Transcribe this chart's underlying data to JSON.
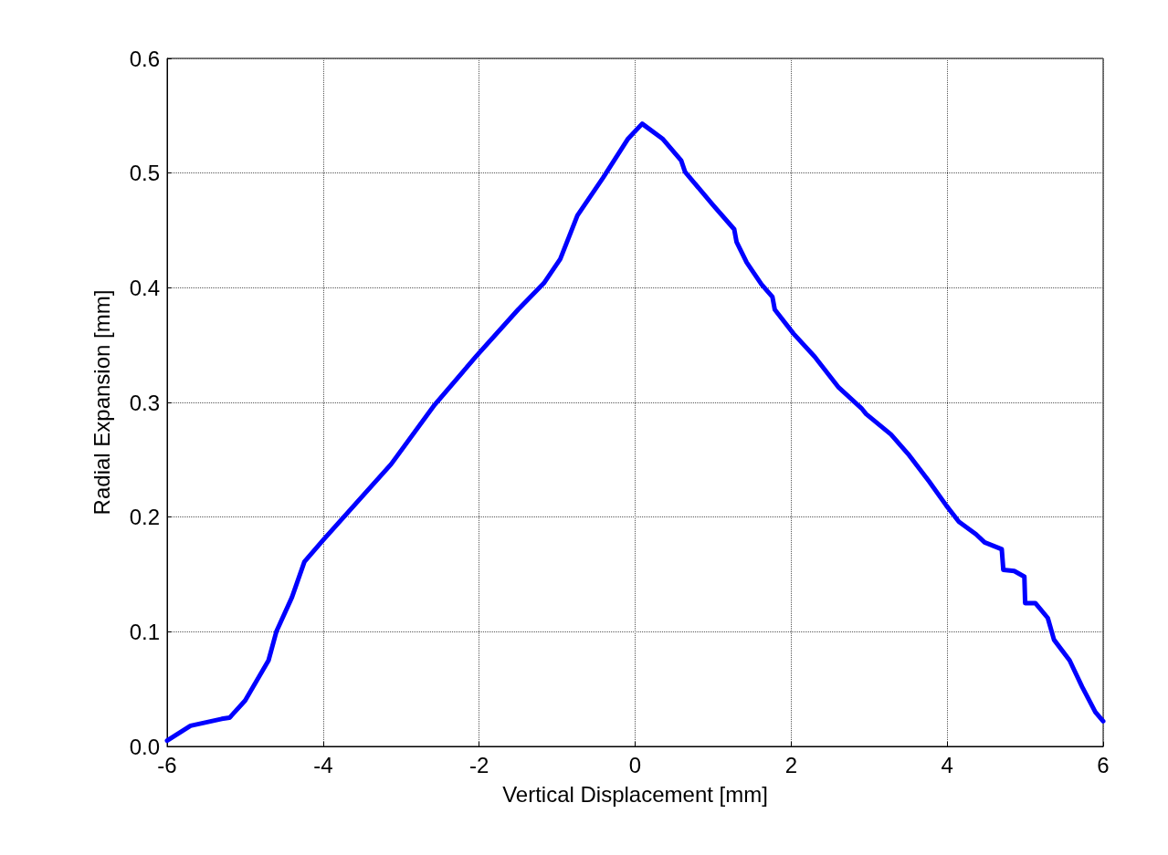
{
  "chart_data": {
    "type": "line",
    "xlabel": "Vertical Displacement [mm]",
    "ylabel": "Radial Expansion [mm]",
    "xlim": [
      -6,
      6
    ],
    "xticks": [
      -6,
      -4,
      -2,
      0,
      2,
      4,
      6
    ],
    "ylim": [
      0,
      0.6
    ],
    "yticks": [
      {
        "value": 0,
        "label": "0.0"
      },
      0.1,
      0.2,
      0.3,
      0.4,
      0.5,
      0.6
    ],
    "grid": true,
    "marker": "none",
    "line_style": "solid",
    "series": [
      {
        "color": "#0000ff",
        "x": [
          -6,
          -5.7,
          -5.5,
          -5.3,
          -5.2,
          -5.0,
          -4.7,
          -4.6,
          -4.4,
          -4.24,
          -4.0,
          -3.13,
          -2.57,
          -2.04,
          -1.5,
          -1.17,
          -0.96,
          -0.74,
          -0.41,
          -0.09,
          0.09,
          0.35,
          0.59,
          0.64,
          1.0,
          1.27,
          1.3,
          1.43,
          1.62,
          1.76,
          1.79,
          2.03,
          2.3,
          2.61,
          2.9,
          2.96,
          3.28,
          3.5,
          3.77,
          3.99,
          4.15,
          4.37,
          4.48,
          4.7,
          4.72,
          4.86,
          4.99,
          5.0,
          5.13,
          5.29,
          5.37,
          5.57,
          5.73,
          5.9,
          6
        ],
        "values": [
          0.005,
          0.018,
          0.021,
          0.024,
          0.025,
          0.04,
          0.075,
          0.1,
          0.13,
          0.161,
          0.18,
          0.246,
          0.298,
          0.34,
          0.381,
          0.404,
          0.425,
          0.463,
          0.496,
          0.53,
          0.543,
          0.53,
          0.511,
          0.501,
          0.472,
          0.451,
          0.44,
          0.422,
          0.403,
          0.392,
          0.381,
          0.36,
          0.34,
          0.313,
          0.295,
          0.29,
          0.272,
          0.255,
          0.231,
          0.21,
          0.196,
          0.185,
          0.178,
          0.172,
          0.154,
          0.153,
          0.148,
          0.125,
          0.125,
          0.112,
          0.093,
          0.075,
          0.052,
          0.03,
          0.022
        ]
      }
    ]
  }
}
